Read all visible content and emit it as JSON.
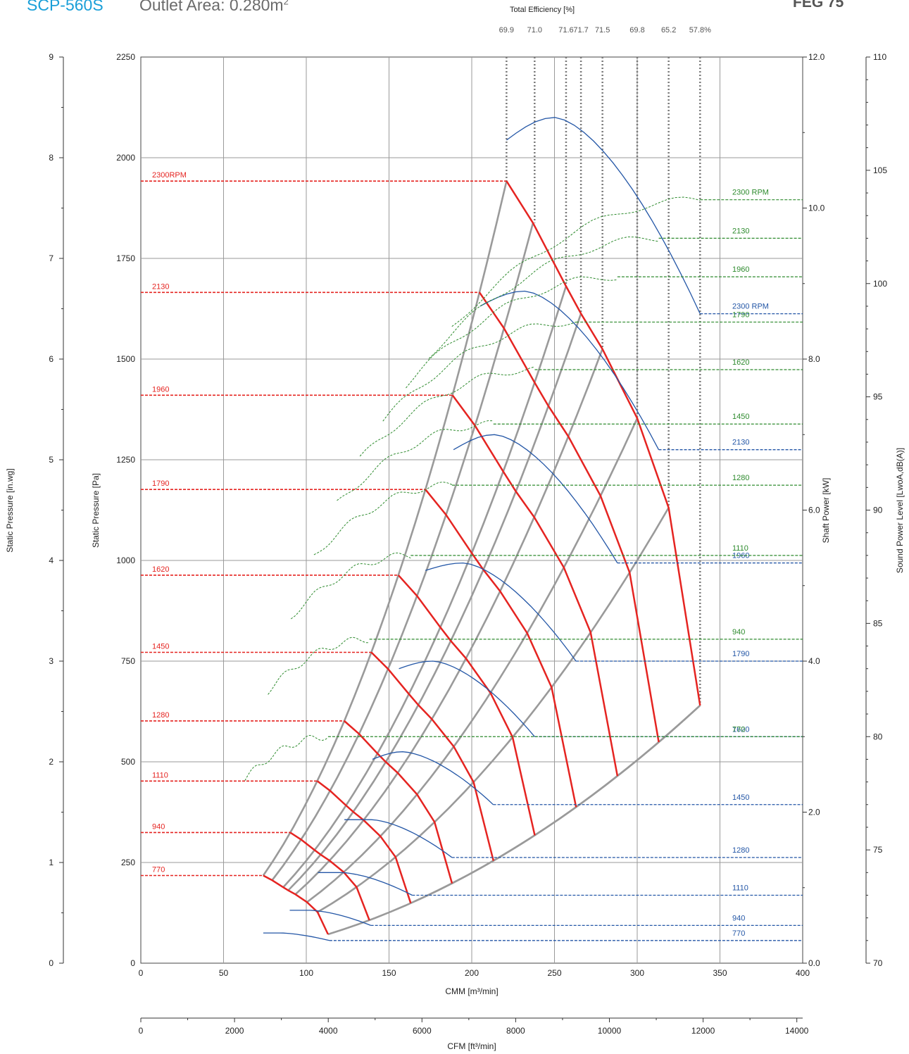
{
  "header": {
    "model": "SCP-560S",
    "outlet_area_label": "Outlet Area: 0.280m",
    "outlet_area_sup": "2",
    "fan_code": "FEG 75"
  },
  "colors": {
    "pressure": "#e52421",
    "power": "#2356a6",
    "sound": "#2e8b2e",
    "system": "#9a9a9a",
    "efficiency": "#7a7a7a",
    "model": "#1a9fd8",
    "grid": "#9a9a9a"
  },
  "chart_data": {
    "type": "line",
    "title": "",
    "grid": true,
    "axes": {
      "x_cmm": {
        "label": "CMM [m³/min]",
        "range": [
          0,
          400
        ],
        "ticks": [
          0,
          50,
          100,
          150,
          200,
          250,
          300,
          350,
          400
        ]
      },
      "x_cfm": {
        "label": "CFM [ft³/min]",
        "range": [
          0,
          14125
        ],
        "ticks": [
          0,
          2000,
          4000,
          6000,
          8000,
          10000,
          12000,
          14000
        ]
      },
      "y_pa": {
        "label": "Static Pressure [Pa]",
        "range": [
          0,
          2250
        ],
        "ticks": [
          0,
          250,
          500,
          750,
          1000,
          1250,
          1500,
          1750,
          2000,
          2250
        ]
      },
      "y_inwg": {
        "label": "Static Pressure [in.wg]",
        "range": [
          0,
          9
        ],
        "ticks": [
          0,
          1,
          2,
          3,
          4,
          5,
          6,
          7,
          8,
          9
        ]
      },
      "y_kw": {
        "label": "Shaft Power [kW]",
        "range": [
          0,
          12
        ],
        "ticks": [
          0.0,
          2.0,
          4.0,
          6.0,
          8.0,
          10.0,
          12.0
        ]
      },
      "y_db": {
        "label": "Sound Power Level [LwoA,dB(A)]",
        "range": [
          70,
          110
        ],
        "ticks": [
          70,
          75,
          80,
          85,
          90,
          95,
          100,
          105,
          110
        ]
      }
    },
    "efficiency": {
      "label": "Total Efficiency [%]",
      "values": [
        "69.9",
        "71.0",
        "71.6",
        "71.7",
        "71.5",
        "69.8",
        "65.2",
        "57.8%"
      ],
      "x_cmm": [
        221,
        238,
        257,
        266,
        279,
        300,
        319,
        338
      ]
    },
    "rpm_labels": [
      "2300RPM",
      "2130",
      "1960",
      "1790",
      "1620",
      "1450",
      "1280",
      "1110",
      "940",
      "770"
    ],
    "power_labels": [
      "2300 RPM",
      "2130",
      "1960",
      "1790",
      "1620",
      "1450",
      "1280",
      "1110",
      "940",
      "770"
    ],
    "sound_labels": [
      "2300 RPM",
      "2130",
      "1960",
      "1790",
      "1620",
      "1450",
      "1280",
      "1110",
      "940",
      "770"
    ],
    "pressure_curves": {
      "rpm": [
        2300,
        2130,
        1960,
        1790,
        1620,
        1450,
        1280,
        1110,
        940,
        770
      ],
      "reference_rpm": 2300,
      "cmm": [
        221,
        237,
        257,
        266,
        279,
        300,
        319,
        338
      ],
      "pa": [
        1942,
        1838,
        1681,
        1613,
        1525,
        1353,
        1131,
        640
      ]
    },
    "system_curves_pa_at_ends": [
      {
        "left_cmm": 75,
        "right_cmm": 221,
        "right_pa": 1942
      },
      {
        "left_cmm": 75,
        "right_cmm": 237,
        "right_pa": 1838
      },
      {
        "left_cmm": 75,
        "right_cmm": 257,
        "right_pa": 1681
      },
      {
        "left_cmm": 75,
        "right_cmm": 266,
        "right_pa": 1613
      },
      {
        "left_cmm": 75,
        "right_cmm": 279,
        "right_pa": 1525
      },
      {
        "left_cmm": 75,
        "right_cmm": 300,
        "right_pa": 1353
      },
      {
        "left_cmm": 75,
        "right_cmm": 319,
        "right_pa": 1131
      },
      {
        "left_cmm": 75,
        "right_cmm": 338,
        "right_pa": 640
      }
    ],
    "power_curves": {
      "rpm": [
        2300,
        2130,
        1960,
        1790,
        1620,
        1450,
        1280,
        1110,
        940,
        770
      ],
      "start_cmm": [
        221,
        205,
        189,
        172,
        156,
        140,
        123,
        107,
        90,
        74
      ],
      "end_cmm": [
        338,
        313,
        288,
        263,
        238,
        213,
        188,
        164,
        139,
        114
      ],
      "start_kw": [
        10.9,
        8.7,
        6.8,
        5.2,
        3.9,
        2.7,
        1.9,
        1.2,
        0.7,
        0.4
      ],
      "peak_kw": [
        11.2,
        8.9,
        7.0,
        5.3,
        4.0,
        2.8,
        1.9,
        1.2,
        0.7,
        0.4
      ],
      "end_kw": [
        8.6,
        6.8,
        5.3,
        4.0,
        3.0,
        2.1,
        1.4,
        0.9,
        0.5,
        0.3
      ]
    },
    "sound_levels_db": {
      "rpm": [
        2300,
        2130,
        1960,
        1790,
        1620,
        1450,
        1280,
        1110,
        940,
        770
      ],
      "db": [
        103.7,
        102.0,
        100.3,
        98.3,
        96.2,
        93.8,
        91.1,
        88.0,
        84.3,
        80.0
      ]
    }
  }
}
